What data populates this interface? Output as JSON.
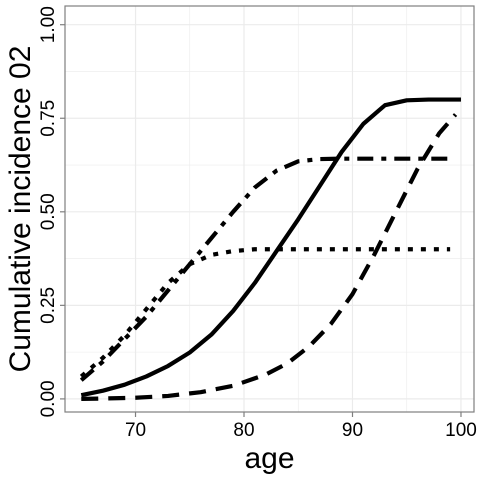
{
  "chart_data": {
    "type": "line",
    "xlabel": "age",
    "ylabel": "Cumulative incidence 02",
    "xlim": [
      63.5,
      101.2
    ],
    "ylim": [
      -0.035,
      1.05
    ],
    "x_ticks": [
      70,
      80,
      90,
      100
    ],
    "x_tick_labels": [
      "70",
      "80",
      "90",
      "100"
    ],
    "y_ticks": [
      0.0,
      0.25,
      0.5,
      0.75,
      1.0
    ],
    "y_tick_labels": [
      "0.00",
      "0.25",
      "0.50",
      "0.75",
      "1.00"
    ],
    "grid": true,
    "legend": "none",
    "colors": {
      "line": "#000000",
      "grid": "#ebebeb",
      "panel_border": "#7f7f7f",
      "background": "#ffffff"
    },
    "series": [
      {
        "style": "solid",
        "x": [
          65,
          67,
          69,
          71,
          73,
          75,
          77,
          79,
          81,
          83,
          85,
          87,
          89,
          91,
          93,
          95,
          97,
          99,
          100
        ],
        "y": [
          0.01,
          0.022,
          0.038,
          0.06,
          0.088,
          0.124,
          0.172,
          0.235,
          0.31,
          0.395,
          0.48,
          0.57,
          0.66,
          0.735,
          0.785,
          0.798,
          0.8,
          0.8,
          0.8
        ]
      },
      {
        "style": "dashed",
        "x": [
          65,
          67,
          70,
          73,
          76,
          79,
          82,
          84,
          86,
          88,
          90,
          92,
          94,
          96,
          98,
          99.5
        ],
        "y": [
          0.0,
          0.001,
          0.003,
          0.008,
          0.018,
          0.035,
          0.065,
          0.095,
          0.14,
          0.2,
          0.28,
          0.385,
          0.5,
          0.615,
          0.71,
          0.76
        ]
      },
      {
        "style": "dotted",
        "x": [
          65,
          67,
          69,
          71,
          73,
          75,
          77,
          79,
          81,
          85,
          90,
          95,
          99
        ],
        "y": [
          0.06,
          0.11,
          0.17,
          0.24,
          0.31,
          0.36,
          0.385,
          0.395,
          0.4,
          0.4,
          0.4,
          0.4,
          0.4
        ]
      },
      {
        "style": "dashdot",
        "x": [
          65,
          67,
          69,
          71,
          73,
          75,
          77,
          79,
          81,
          83,
          85,
          87,
          89,
          92,
          95,
          99
        ],
        "y": [
          0.05,
          0.1,
          0.16,
          0.22,
          0.29,
          0.36,
          0.43,
          0.5,
          0.565,
          0.61,
          0.635,
          0.641,
          0.642,
          0.642,
          0.642,
          0.642
        ]
      }
    ]
  }
}
